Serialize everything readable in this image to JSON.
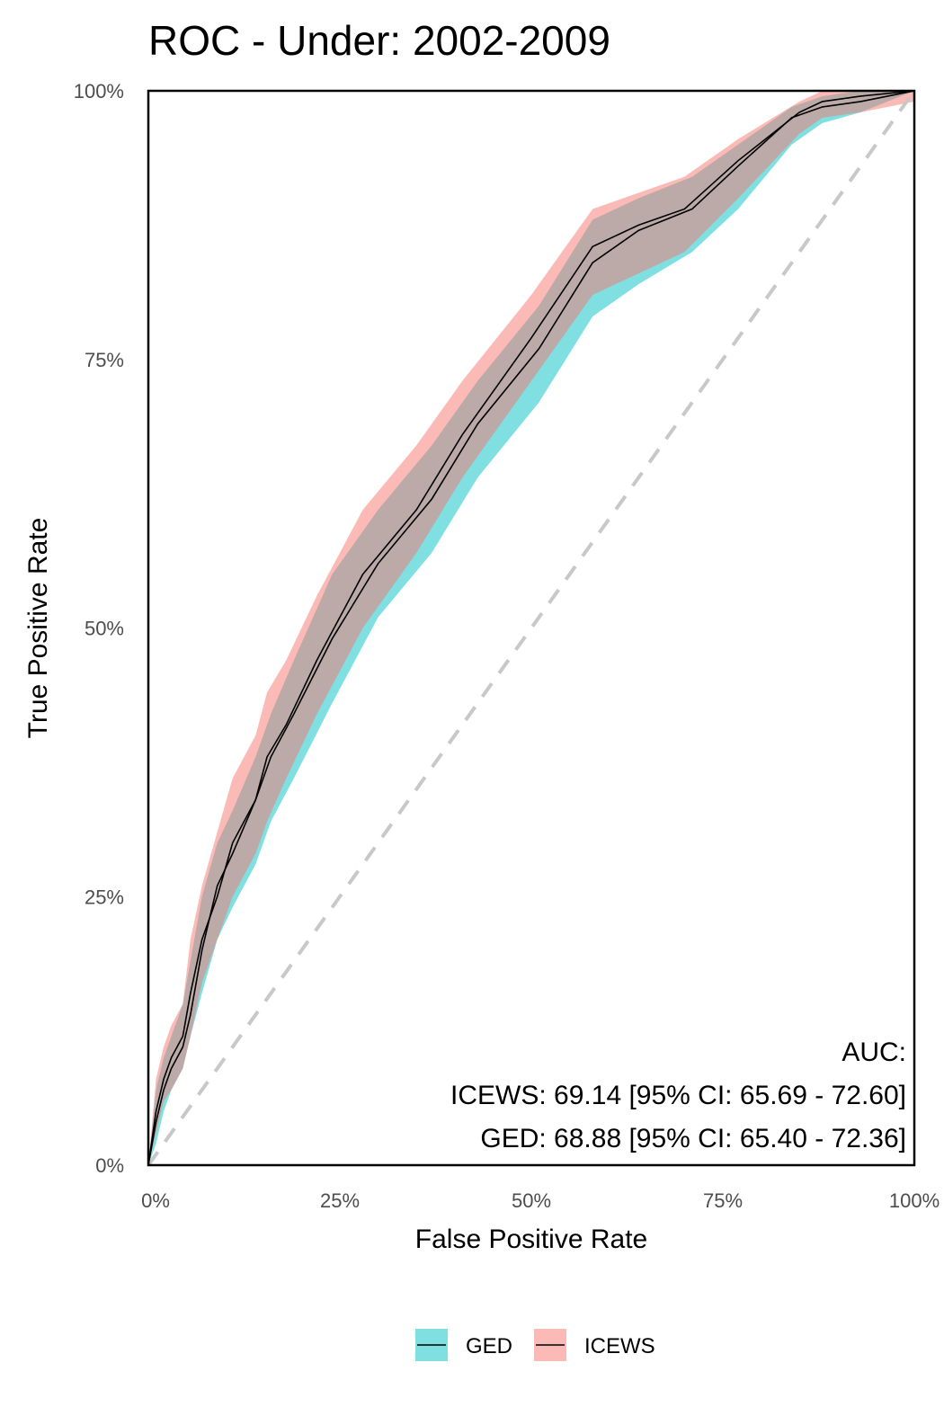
{
  "chart_data": {
    "type": "line",
    "title": "ROC - Under: 2002-2009",
    "xlabel": "False Positive Rate",
    "ylabel": "True Positive Rate",
    "xlim": [
      0,
      1
    ],
    "ylim": [
      0,
      1
    ],
    "x_ticks": [
      "0%",
      "25%",
      "50%",
      "75%",
      "100%"
    ],
    "y_ticks": [
      "0%",
      "25%",
      "50%",
      "75%",
      "100%"
    ],
    "tick_values": [
      0,
      0.25,
      0.5,
      0.75,
      1
    ],
    "grid": false,
    "legend_position": "bottom",
    "colors": {
      "GED": "#00BFC4",
      "ICEWS": "#F8766D",
      "line": "#000000",
      "diagonal": "#c8c8c8"
    },
    "annotation": {
      "heading": "AUC:",
      "lines": [
        "ICEWS: 69.14 [95% CI: 65.69 - 72.60]",
        "GED: 68.88 [95% CI: 65.40 - 72.36]"
      ]
    },
    "series": [
      {
        "name": "GED",
        "x": [
          0,
          0.01,
          0.02,
          0.03,
          0.045,
          0.055,
          0.07,
          0.09,
          0.11,
          0.14,
          0.16,
          0.19,
          0.24,
          0.3,
          0.37,
          0.43,
          0.51,
          0.58,
          0.64,
          0.71,
          0.77,
          0.84,
          0.88,
          0.93,
          1.0
        ],
        "y": [
          0,
          0.04,
          0.07,
          0.09,
          0.11,
          0.14,
          0.2,
          0.26,
          0.29,
          0.34,
          0.38,
          0.42,
          0.49,
          0.56,
          0.62,
          0.69,
          0.76,
          0.84,
          0.87,
          0.89,
          0.93,
          0.975,
          0.985,
          0.99,
          1.0
        ],
        "lower": [
          0,
          0.02,
          0.05,
          0.07,
          0.09,
          0.12,
          0.16,
          0.21,
          0.24,
          0.28,
          0.32,
          0.36,
          0.43,
          0.51,
          0.57,
          0.64,
          0.71,
          0.79,
          0.82,
          0.85,
          0.89,
          0.95,
          0.97,
          0.98,
          1.0
        ],
        "upper": [
          0,
          0.07,
          0.1,
          0.12,
          0.15,
          0.19,
          0.25,
          0.3,
          0.33,
          0.38,
          0.42,
          0.47,
          0.55,
          0.61,
          0.67,
          0.73,
          0.8,
          0.88,
          0.9,
          0.92,
          0.95,
          0.985,
          0.995,
          1.0,
          1.0
        ]
      },
      {
        "name": "ICEWS",
        "x": [
          0,
          0.01,
          0.02,
          0.03,
          0.045,
          0.055,
          0.07,
          0.09,
          0.11,
          0.14,
          0.155,
          0.18,
          0.22,
          0.28,
          0.35,
          0.41,
          0.5,
          0.58,
          0.64,
          0.7,
          0.77,
          0.85,
          0.88,
          0.93,
          1.0
        ],
        "y": [
          0,
          0.05,
          0.08,
          0.1,
          0.12,
          0.16,
          0.21,
          0.25,
          0.3,
          0.34,
          0.38,
          0.41,
          0.47,
          0.55,
          0.61,
          0.68,
          0.77,
          0.855,
          0.875,
          0.89,
          0.935,
          0.98,
          0.99,
          0.995,
          1.0
        ],
        "lower": [
          0,
          0.03,
          0.06,
          0.07,
          0.09,
          0.12,
          0.17,
          0.21,
          0.25,
          0.29,
          0.32,
          0.36,
          0.42,
          0.5,
          0.57,
          0.64,
          0.73,
          0.81,
          0.83,
          0.85,
          0.9,
          0.96,
          0.975,
          0.98,
          0.99
        ],
        "upper": [
          0,
          0.08,
          0.11,
          0.13,
          0.15,
          0.21,
          0.26,
          0.31,
          0.36,
          0.4,
          0.44,
          0.47,
          0.53,
          0.61,
          0.67,
          0.73,
          0.81,
          0.89,
          0.905,
          0.92,
          0.955,
          0.99,
          1.0,
          1.0,
          1.0
        ]
      }
    ]
  }
}
